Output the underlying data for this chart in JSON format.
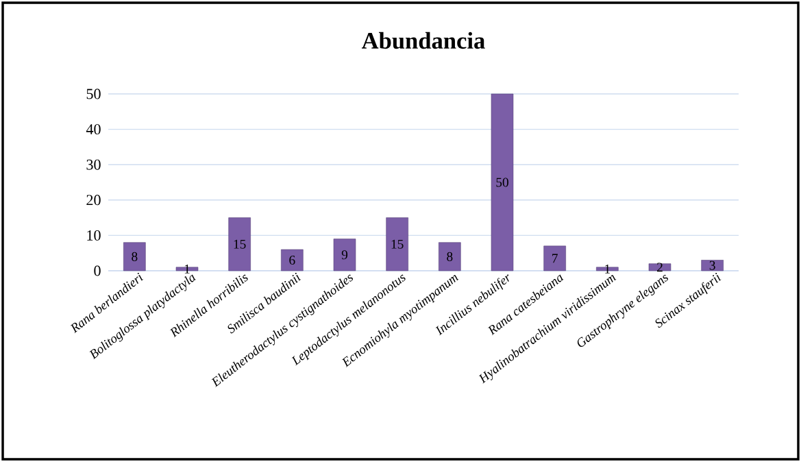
{
  "chart_data": {
    "type": "bar",
    "title": "Abundancia",
    "categories": [
      "Rana berlandieri",
      "Bolitoglossa platydactyla",
      "Rhinella horribilis",
      "Smilisca baudinii",
      "Eleutherodactylus cystignathoides",
      "Leptodactylus melanonotus",
      "Ecnomiohyla myotimpanum",
      "Incillius nebulifer",
      "Rana catesbeiana",
      "Hyalinobatrachium viridissimum",
      "Gastrophryne elegans",
      "Scinax stauferii"
    ],
    "values": [
      8,
      1,
      15,
      6,
      9,
      15,
      8,
      50,
      7,
      1,
      2,
      3
    ],
    "color": "#7b5ea7",
    "ylim": [
      0,
      50
    ],
    "yticks": [
      0,
      10,
      20,
      30,
      40,
      50
    ],
    "grid": "y",
    "data_labels": true
  }
}
